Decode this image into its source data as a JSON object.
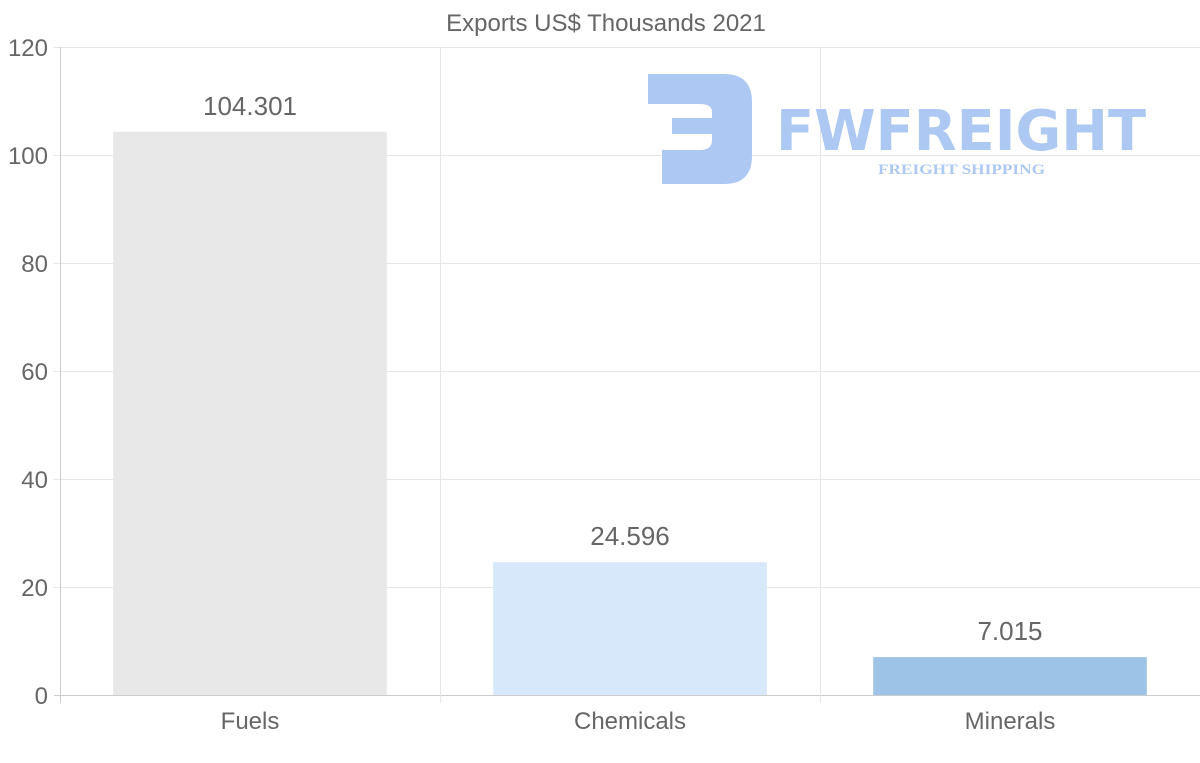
{
  "chart_data": {
    "type": "bar",
    "title": "Exports US$ Thousands 2021",
    "categories": [
      "Fuels",
      "Chemicals",
      "Minerals"
    ],
    "values": [
      104.301,
      24.596,
      7.015
    ],
    "value_labels": [
      "104.301",
      "24.596",
      "7.015"
    ],
    "bar_colors": [
      "#e8e8e8",
      "#d6e8fa",
      "#9dc3e6"
    ],
    "ylim": [
      0,
      120
    ],
    "yticks": [
      0,
      20,
      40,
      60,
      80,
      100,
      120
    ],
    "xlabel": "",
    "ylabel": "",
    "grid": true
  },
  "watermark": {
    "name": "FWFREIGHT",
    "tagline": "FREIGHT SHIPPING",
    "color": "#a9c6f2"
  }
}
